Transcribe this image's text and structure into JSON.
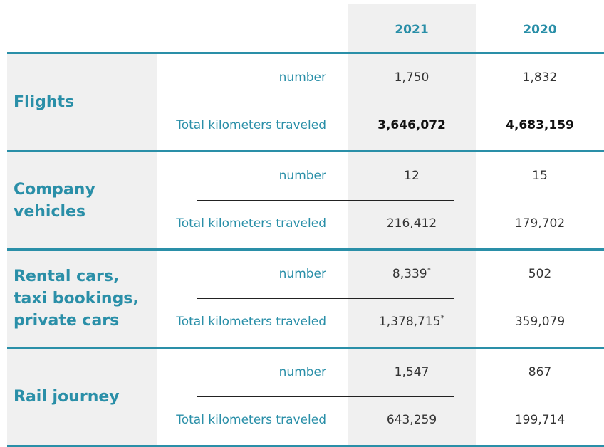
{
  "headers": {
    "col1": "2021",
    "col2": "2020"
  },
  "sections": [
    {
      "category": "Flights",
      "rows": [
        {
          "metric": "number",
          "v2021": "1,750",
          "v2021_note": "",
          "v2020": "1,832"
        },
        {
          "metric": "Total kilometers traveled",
          "v2021": "3,646,072",
          "v2021_note": "",
          "v2020": "4,683,159"
        }
      ]
    },
    {
      "category": "Company\nvehicles",
      "rows": [
        {
          "metric": "number",
          "v2021": "12",
          "v2021_note": "",
          "v2020": "15"
        },
        {
          "metric": "Total kilometers traveled",
          "v2021": "216,412",
          "v2021_note": "",
          "v2020": "179,702"
        }
      ]
    },
    {
      "category": "Rental cars,\ntaxi bookings,\nprivate cars",
      "rows": [
        {
          "metric": "number",
          "v2021": "8,339",
          "v2021_note": "*",
          "v2020": "502"
        },
        {
          "metric": "Total kilometers traveled",
          "v2021": "1,378,715",
          "v2021_note": "*",
          "v2020": "359,079"
        }
      ]
    },
    {
      "category": "Rail journey",
      "rows": [
        {
          "metric": "number",
          "v2021": "1,547",
          "v2021_note": "",
          "v2020": "867"
        },
        {
          "metric": "Total kilometers traveled",
          "v2021": "643,259",
          "v2021_note": "",
          "v2020": "199,714"
        }
      ]
    }
  ],
  "colors": {
    "accent": "#2a8fa8",
    "shade": "#f0f0f0",
    "text": "#333333"
  }
}
